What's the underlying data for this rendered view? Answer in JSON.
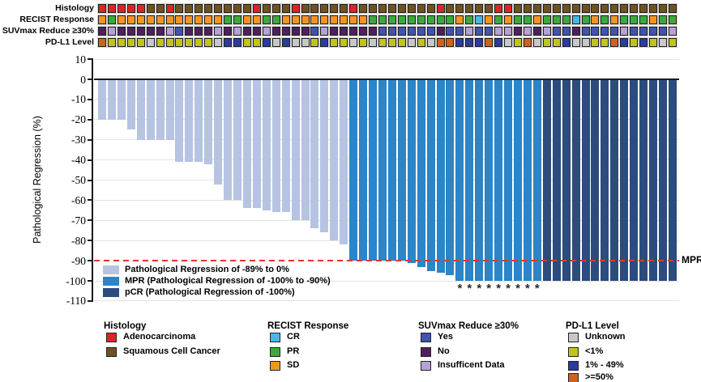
{
  "annotation_tracks": {
    "rows": [
      {
        "label": "Histology",
        "palette": {
          "A": "#e22128",
          "S": "#6f5222"
        },
        "codes": [
          "A",
          "A",
          "A",
          "A",
          "A",
          "S",
          "S",
          "A",
          "S",
          "S",
          "S",
          "S",
          "S",
          "S",
          "S",
          "S",
          "A",
          "S",
          "S",
          "S",
          "A",
          "S",
          "S",
          "S",
          "S",
          "S",
          "A",
          "S",
          "S",
          "S",
          "S",
          "S",
          "S",
          "S",
          "S",
          "A",
          "S",
          "S",
          "S",
          "S",
          "S",
          "A",
          "A",
          "S",
          "S",
          "S",
          "S",
          "S",
          "S",
          "S",
          "S",
          "S",
          "S",
          "S",
          "S",
          "S",
          "S",
          "S",
          "S",
          "S"
        ]
      },
      {
        "label": "RECIST Response",
        "palette": {
          "SD": "#f6951e",
          "PR": "#3ba93b",
          "CR": "#46b7e6"
        },
        "codes": [
          "SD",
          "PR",
          "SD",
          "SD",
          "SD",
          "SD",
          "SD",
          "SD",
          "SD",
          "SD",
          "SD",
          "SD",
          "SD",
          "PR",
          "PR",
          "SD",
          "SD",
          "PR",
          "PR",
          "SD",
          "SD",
          "SD",
          "SD",
          "SD",
          "SD",
          "SD",
          "SD",
          "SD",
          "PR",
          "PR",
          "PR",
          "PR",
          "PR",
          "PR",
          "PR",
          "PR",
          "PR",
          "SD",
          "PR",
          "CR",
          "SD",
          "PR",
          "SD",
          "PR",
          "PR",
          "SD",
          "PR",
          "PR",
          "PR",
          "CR",
          "PR",
          "SD",
          "PR",
          "SD",
          "PR",
          "PR",
          "PR",
          "SD",
          "PR",
          "PR"
        ]
      },
      {
        "label": "SUVmax Reduce ≥30%",
        "palette": {
          "Yes": "#4054ae",
          "No": "#4f1f5e",
          "Ins": "#b6a1d5"
        },
        "codes": [
          "No",
          "Ins",
          "No",
          "No",
          "No",
          "No",
          "No",
          "Ins",
          "Yes",
          "No",
          "No",
          "No",
          "Ins",
          "No",
          "Ins",
          "No",
          "No",
          "Ins",
          "No",
          "No",
          "No",
          "No",
          "Yes",
          "Ins",
          "No",
          "No",
          "No",
          "No",
          "No",
          "Yes",
          "Yes",
          "Yes",
          "Yes",
          "Yes",
          "Yes",
          "No",
          "Yes",
          "Yes",
          "Ins",
          "Yes",
          "Yes",
          "Ins",
          "Ins",
          "No",
          "Ins",
          "No",
          "Ins",
          "Yes",
          "Yes",
          "No",
          "Yes",
          "Yes",
          "Yes",
          "Yes",
          "Ins",
          "Yes",
          "Yes",
          "Yes",
          "Yes",
          "Ins"
        ]
      },
      {
        "label": "PD-L1 Level",
        "palette": {
          "U": "#c8c8c8",
          "L": "#bfc51d",
          "M": "#2c3b9e",
          "H": "#cd6322"
        },
        "codes": [
          "H",
          "L",
          "L",
          "L",
          "L",
          "U",
          "L",
          "L",
          "L",
          "L",
          "L",
          "L",
          "U",
          "M",
          "M",
          "L",
          "L",
          "M",
          "U",
          "M",
          "U",
          "U",
          "L",
          "M",
          "L",
          "L",
          "U",
          "L",
          "U",
          "L",
          "L",
          "L",
          "U",
          "L",
          "U",
          "H",
          "H",
          "M",
          "M",
          "M",
          "H",
          "M",
          "U",
          "L",
          "H",
          "U",
          "L",
          "L",
          "M",
          "U",
          "U",
          "L",
          "L",
          "H",
          "M",
          "L",
          "M",
          "L",
          "U",
          "L"
        ]
      }
    ]
  },
  "chart_data": {
    "type": "bar",
    "title": "",
    "ylabel": "Pathological Regression (%)",
    "ylim": [
      -110,
      10
    ],
    "yticks": [
      10,
      0,
      -10,
      -20,
      -30,
      -40,
      -50,
      -60,
      -70,
      -80,
      -90,
      -100,
      -110
    ],
    "n_patients": 60,
    "values": [
      -20,
      -20,
      -20,
      -25,
      -30,
      -30,
      -30,
      -30,
      -41,
      -41,
      -41,
      -42,
      -52,
      -60,
      -60,
      -64,
      -64,
      -65,
      -66,
      -66,
      -70,
      -70,
      -74,
      -76,
      -80,
      -82,
      -90,
      -90,
      -90,
      -90,
      -90,
      -90,
      -91,
      -93,
      -95,
      -96,
      -97,
      -100,
      -100,
      -100,
      -100,
      -100,
      -100,
      -100,
      -100,
      -100,
      -100,
      -100,
      -100,
      -100,
      -100,
      -100,
      -100,
      -100,
      -100,
      -100,
      -100,
      -100,
      -100,
      -100
    ],
    "groups": [
      "regression",
      "regression",
      "regression",
      "regression",
      "regression",
      "regression",
      "regression",
      "regression",
      "regression",
      "regression",
      "regression",
      "regression",
      "regression",
      "regression",
      "regression",
      "regression",
      "regression",
      "regression",
      "regression",
      "regression",
      "regression",
      "regression",
      "regression",
      "regression",
      "regression",
      "regression",
      "mpr",
      "mpr",
      "mpr",
      "mpr",
      "mpr",
      "mpr",
      "mpr",
      "mpr",
      "mpr",
      "mpr",
      "mpr",
      "mpr",
      "mpr",
      "mpr",
      "mpr",
      "mpr",
      "mpr",
      "mpr",
      "mpr",
      "mpr",
      "pcr",
      "pcr",
      "pcr",
      "pcr",
      "pcr",
      "pcr",
      "pcr",
      "pcr",
      "pcr",
      "pcr",
      "pcr",
      "pcr",
      "pcr",
      "pcr"
    ],
    "group_colors": {
      "regression": "#b6c4e2",
      "mpr": "#2b85c8",
      "pcr": "#2b4c7d"
    },
    "asterisk_columns": [
      38,
      39,
      40,
      41,
      42,
      43,
      44,
      45,
      46
    ],
    "asterisk_symbol": "*",
    "reference_line": {
      "value": -90,
      "label": "MPR",
      "color": "#e8352c",
      "style": "dashed"
    },
    "legend": [
      {
        "group": "regression",
        "label": "Pathological Regression of -89% to 0%"
      },
      {
        "group": "mpr",
        "label": "MPR (Pathological Regression of -100% to -90%)"
      },
      {
        "group": "pcr",
        "label": "pCR (Pathological Regression of -100%)"
      }
    ],
    "legend_position": "bottom-left-inside",
    "grid": true
  },
  "bottom_legend": {
    "columns": [
      {
        "header": "Histology",
        "items": [
          {
            "label": "Adenocarcinoma",
            "color": "#e22128"
          },
          {
            "label": "Squamous Cell Cancer",
            "color": "#6f5222"
          }
        ]
      },
      {
        "header": "RECIST Response",
        "items": [
          {
            "label": "CR",
            "color": "#46b7e6"
          },
          {
            "label": "PR",
            "color": "#3ba93b"
          },
          {
            "label": "SD",
            "color": "#f6951e"
          }
        ]
      },
      {
        "header": "SUVmax Reduce ≥30%",
        "items": [
          {
            "label": "Yes",
            "color": "#4054ae"
          },
          {
            "label": "No",
            "color": "#4f1f5e"
          },
          {
            "label": "Insufficent Data",
            "color": "#b6a1d5"
          }
        ]
      },
      {
        "header": "PD-L1 Level",
        "items": [
          {
            "label": "Unknown",
            "color": "#c8c8c8"
          },
          {
            "label": "<1%",
            "color": "#bfc51d"
          },
          {
            "label": "1% - 49%",
            "color": "#2c3b9e"
          },
          {
            "label": ">=50%",
            "color": "#cd6322"
          }
        ]
      }
    ]
  }
}
